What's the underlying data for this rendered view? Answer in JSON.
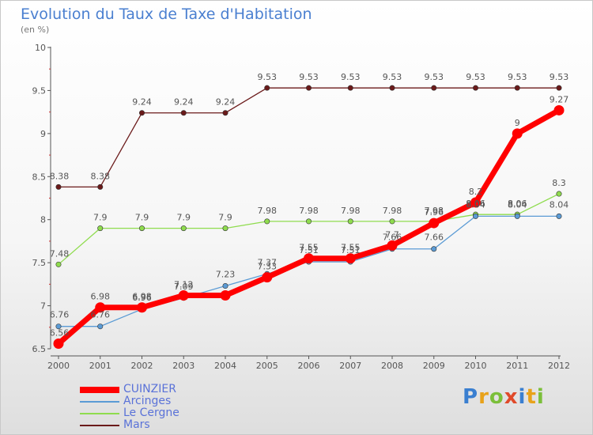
{
  "chart_data": {
    "type": "line",
    "title": "Evolution du Taux de Taxe d'Habitation",
    "subtitle": "(en %)",
    "xlabel": "",
    "ylabel": "",
    "ylim": [
      6.5,
      10
    ],
    "y_ticks": [
      "6.5",
      "7",
      "7.5",
      "8",
      "8.5",
      "9",
      "9.5",
      "10"
    ],
    "grid": false,
    "legend_position": "bottom-left",
    "categories": [
      "2000",
      "2001",
      "2002",
      "2003",
      "2004",
      "2005",
      "2006",
      "2007",
      "2008",
      "2009",
      "2010",
      "2011",
      "2012"
    ],
    "series": [
      {
        "name": "CUINZIER",
        "color": "#ff0000",
        "values": [
          6.56,
          6.98,
          6.98,
          7.12,
          7.12,
          7.33,
          7.55,
          7.55,
          7.7,
          7.96,
          8.2,
          9,
          9.27
        ],
        "labels": [
          "6.56",
          "6.98",
          "6.98",
          "7.12",
          "",
          "7.33",
          "7.55",
          "7.55",
          "7.7",
          "7.96",
          "8.2",
          "9",
          "9.27"
        ]
      },
      {
        "name": "Arcinges",
        "color": "#5b9bd5",
        "values": [
          6.76,
          6.76,
          6.96,
          7.09,
          7.23,
          7.37,
          7.51,
          7.51,
          7.66,
          7.66,
          8.04,
          8.04,
          8.04
        ],
        "labels": [
          "6.76",
          "6.76",
          "6.96",
          "7.09",
          "7.23",
          "7.37",
          "7.51",
          "7.51",
          "7.66",
          "7.66",
          "8.04",
          "8.04",
          "8.04"
        ]
      },
      {
        "name": "Le Cergne",
        "color": "#8fdc4e",
        "values": [
          7.48,
          7.9,
          7.9,
          7.9,
          7.9,
          7.98,
          7.98,
          7.98,
          7.98,
          7.98,
          8.06,
          8.06,
          8.3
        ],
        "labels": [
          "7.48",
          "7.9",
          "7.9",
          "7.9",
          "7.9",
          "7.98",
          "7.98",
          "7.98",
          "7.98",
          "7.98",
          "8.06",
          "8.06",
          "8.3"
        ]
      },
      {
        "name": "Mars",
        "color": "#6b1a1a",
        "values": [
          8.38,
          8.38,
          9.24,
          9.24,
          9.24,
          9.53,
          9.53,
          9.53,
          9.53,
          9.53,
          9.53,
          9.53,
          9.53
        ],
        "labels": [
          "8.38",
          "8.38",
          "9.24",
          "9.24",
          "9.24",
          "9.53",
          "9.53",
          "9.53",
          "9.53",
          "9.53",
          "9.53",
          "9.53",
          "9.53"
        ]
      }
    ]
  },
  "legend": {
    "items": [
      {
        "label": "CUINZIER",
        "color": "#ff0000"
      },
      {
        "label": "Arcinges",
        "color": "#5b9bd5"
      },
      {
        "label": "Le Cergne",
        "color": "#8fdc4e"
      },
      {
        "label": "Mars",
        "color": "#6b1a1a"
      }
    ]
  },
  "logo": {
    "letters": [
      {
        "ch": "P",
        "color": "#3a7fd0"
      },
      {
        "ch": "r",
        "color": "#e8a21a"
      },
      {
        "ch": "o",
        "color": "#7bbf3a"
      },
      {
        "ch": "x",
        "color": "#e04a2a"
      },
      {
        "ch": "i",
        "color": "#3a7fd0"
      },
      {
        "ch": "t",
        "color": "#e8a21a"
      },
      {
        "ch": "i",
        "color": "#7bbf3a"
      }
    ]
  }
}
